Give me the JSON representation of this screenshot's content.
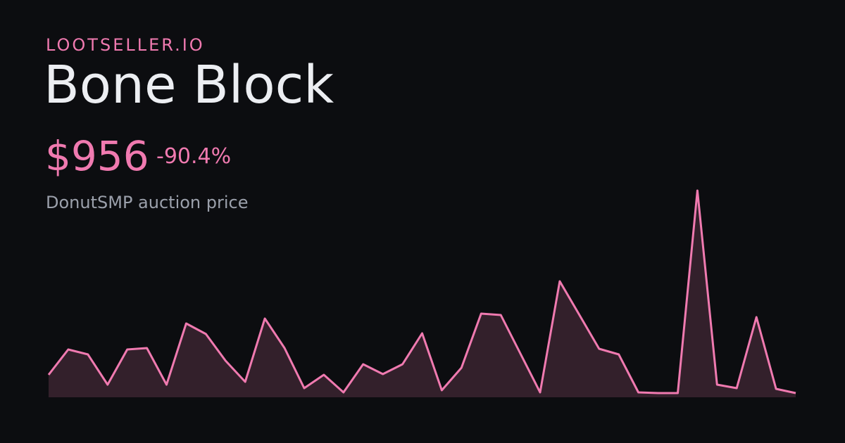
{
  "brand": "LOOTSELLER.IO",
  "title": "Bone Block",
  "price": "$956",
  "change": "-90.4%",
  "subtitle": "DonutSMP auction price",
  "chart_data": {
    "type": "area",
    "color": "#f07ab0",
    "fill": "#33202b",
    "values": [
      32,
      68,
      61,
      18,
      68,
      70,
      18,
      105,
      90,
      52,
      22,
      112,
      70,
      13,
      32,
      7,
      47,
      33,
      47,
      91,
      10,
      42,
      119,
      117,
      62,
      7,
      165,
      117,
      69,
      61,
      7,
      6,
      6,
      294,
      18,
      13,
      114,
      12,
      6
    ]
  }
}
